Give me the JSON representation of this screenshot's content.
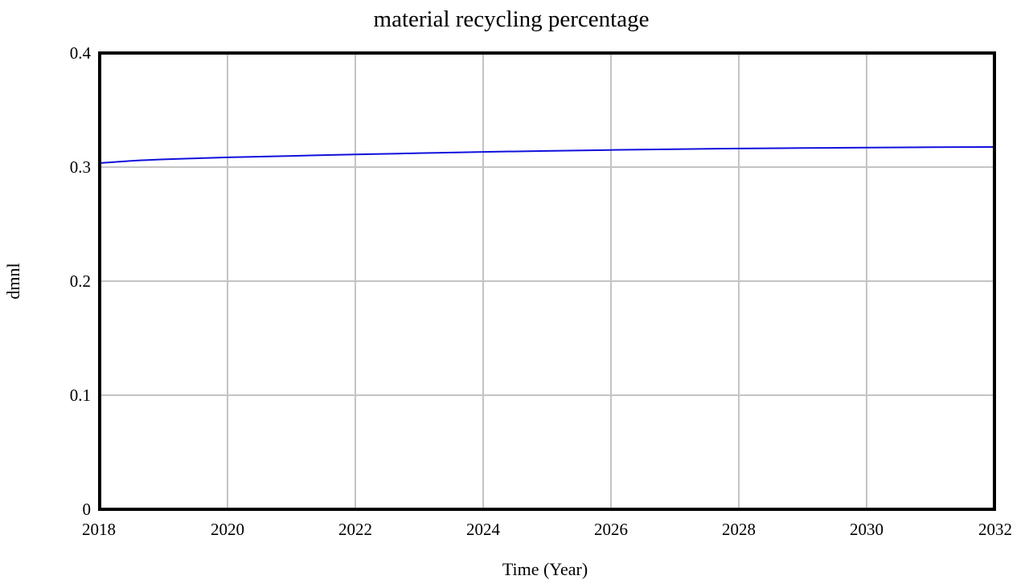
{
  "chart_data": {
    "type": "line",
    "title": "material recycling percentage",
    "xlabel": "Time (Year)",
    "ylabel": "dmnl",
    "xlim": [
      2018,
      2032
    ],
    "ylim": [
      0,
      0.4
    ],
    "x_ticks": [
      2018,
      2020,
      2022,
      2024,
      2026,
      2028,
      2030,
      2032
    ],
    "y_ticks": [
      0,
      0.1,
      0.2,
      0.3,
      0.4
    ],
    "y_tick_labels": [
      "0",
      "0.1",
      "0.2",
      "0.3",
      "0.4"
    ],
    "grid": true,
    "legend": "none",
    "series": [
      {
        "color": "#1010dd",
        "x": [
          2018,
          2018.5,
          2019,
          2019.5,
          2020,
          2021,
          2022,
          2023,
          2024,
          2025,
          2026,
          2027,
          2028,
          2029,
          2030,
          2031,
          2032
        ],
        "y": [
          0.3035,
          0.3055,
          0.3068,
          0.3077,
          0.3085,
          0.3098,
          0.3111,
          0.3122,
          0.3133,
          0.3142,
          0.315,
          0.3157,
          0.3163,
          0.3167,
          0.3171,
          0.3174,
          0.3176
        ]
      }
    ]
  }
}
